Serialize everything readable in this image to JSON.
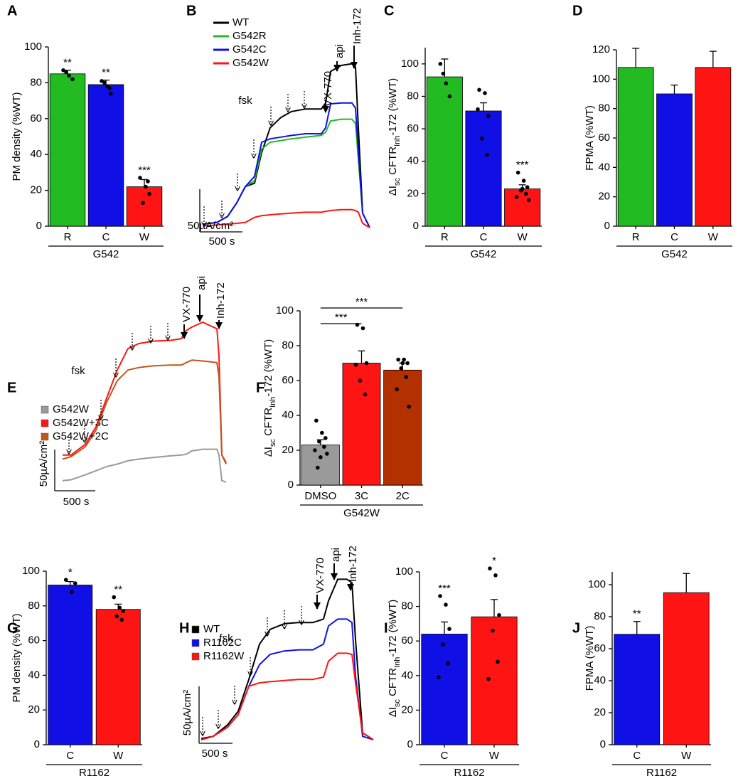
{
  "chart_data": [
    {
      "type": "bar",
      "panel": "A",
      "y_label": [
        "PM density (%WT)"
      ],
      "categories": [
        "R",
        "C",
        "W"
      ],
      "group": "G542",
      "values": [
        85,
        79,
        22
      ],
      "errors": [
        2,
        2.5,
        4
      ],
      "colors": [
        "#22bb22",
        "#1010e6",
        "#ff1414"
      ],
      "points": [
        [
          87,
          84,
          82,
          86
        ],
        [
          81,
          78,
          74,
          80,
          77
        ],
        [
          27,
          22,
          18,
          13,
          25
        ]
      ],
      "annotations": [
        "**",
        "**",
        "***"
      ],
      "ylim": [
        0,
        100
      ],
      "yticks": [
        0,
        20,
        40,
        60,
        80,
        100
      ]
    },
    {
      "type": "trace",
      "panel": "B",
      "x": [
        0,
        167,
        292,
        400,
        500,
        608,
        692,
        792,
        917,
        1042,
        1208,
        1392,
        1442,
        1500,
        1625,
        1750,
        1792,
        1825,
        1875,
        1958
      ],
      "series": [
        {
          "name": "WT",
          "color": "#000000",
          "values": [
            4,
            6,
            13,
            29,
            48,
            52,
            88,
            117,
            129,
            136,
            139,
            139,
            146,
            183,
            190,
            192,
            188,
            117,
            17,
            0
          ]
        },
        {
          "name": "G542R",
          "color": "#22bb22",
          "values": [
            4,
            6,
            13,
            29,
            48,
            55,
            92,
            100,
            102,
            104,
            106,
            108,
            112,
            125,
            127,
            127,
            122,
            80,
            17,
            0
          ]
        },
        {
          "name": "G542C",
          "color": "#1010e6",
          "values": [
            4,
            6,
            13,
            29,
            48,
            60,
            100,
            104,
            106,
            108,
            110,
            110,
            117,
            145,
            146,
            146,
            140,
            90,
            17,
            0
          ]
        },
        {
          "name": "G542W",
          "color": "#ff1414",
          "values": [
            2,
            3,
            4,
            5,
            6,
            12,
            14,
            15,
            16,
            17,
            18,
            18,
            19,
            20,
            21,
            21,
            20,
            18,
            5,
            0
          ]
        }
      ],
      "annotations": [
        "fsk",
        "VX-770",
        "api",
        "Inh-172"
      ],
      "scale_x": {
        "value": 500,
        "label": "500 s"
      },
      "scale_y": {
        "value": 50,
        "label": "50µA/cm²"
      },
      "legend_style": "line"
    },
    {
      "type": "bar",
      "panel": "C",
      "y_label": [
        "ΔI",
        "sc",
        " CFTR",
        "Inh",
        "-172 (%WT)"
      ],
      "categories": [
        "R",
        "C",
        "W"
      ],
      "group": "G542",
      "values": [
        92,
        71,
        23
      ],
      "errors": [
        11,
        5,
        2.5
      ],
      "colors": [
        "#22bb22",
        "#1010e6",
        "#ff1414"
      ],
      "points": [
        [
          100,
          88,
          80,
          94
        ],
        [
          84,
          82,
          68,
          54,
          44,
          72
        ],
        [
          33,
          28,
          24,
          22,
          20,
          18,
          16,
          23
        ]
      ],
      "annotations": [
        null,
        null,
        "***"
      ],
      "ylim": [
        0,
        110
      ],
      "yticks": [
        0,
        20,
        40,
        60,
        80,
        100
      ]
    },
    {
      "type": "bar",
      "panel": "D",
      "y_label": [
        "FPMA (%WT)"
      ],
      "categories": [
        "R",
        "C",
        "W"
      ],
      "group": "G542",
      "values": [
        108,
        90,
        108
      ],
      "errors": [
        13,
        6,
        11
      ],
      "colors": [
        "#22bb22",
        "#1010e6",
        "#ff1414"
      ],
      "ylim": [
        0,
        120
      ],
      "yticks": [
        0,
        20,
        40,
        60,
        80,
        100,
        120
      ]
    },
    {
      "type": "trace",
      "panel": "E",
      "x": [
        0,
        105,
        281,
        412,
        544,
        675,
        807,
        939,
        1114,
        1333,
        1465,
        1526,
        1596,
        1728,
        1816,
        1904,
        1930,
        1965,
        2018
      ],
      "series": [
        {
          "name": "G542W",
          "color": "#9a9a9a",
          "values": [
            2,
            3,
            9,
            14,
            19,
            22,
            26,
            28,
            30,
            32,
            33,
            34,
            38,
            40,
            40,
            40,
            33,
            2,
            0
          ]
        },
        {
          "name": "G542W+3C",
          "color": "#ff1414",
          "values": [
            33,
            33,
            46,
            67,
            102,
            136,
            162,
            168,
            171,
            172,
            174,
            184,
            188,
            194,
            190,
            186,
            153,
            33,
            24
          ]
        },
        {
          "name": "G542W+2C",
          "color": "#c0561e",
          "values": [
            28,
            31,
            43,
            63,
            97,
            123,
            136,
            139,
            141,
            142,
            142,
            145,
            148,
            147,
            146,
            145,
            128,
            33,
            22
          ]
        }
      ],
      "annotations": [
        "fsk",
        "VX-770",
        "api",
        "Inh-172"
      ],
      "scale_x": {
        "value": 500,
        "label": "500 s"
      },
      "scale_y": {
        "value": 50,
        "label": "50µA/cm²"
      },
      "legend_style": "square"
    },
    {
      "type": "bar",
      "panel": "F",
      "y_label": [
        "ΔI",
        "sc",
        " CFTR",
        "Inh",
        "-172 (%WT)"
      ],
      "categories": [
        "DMSO",
        "3C",
        "2C"
      ],
      "group": "G542W",
      "values": [
        23,
        70,
        66
      ],
      "errors": [
        3,
        7,
        4
      ],
      "colors": [
        "#9a9a9a",
        "#ff1414",
        "#b33000"
      ],
      "points": [
        [
          37,
          30,
          27,
          25,
          22,
          20,
          18,
          16,
          10
        ],
        [
          92,
          90,
          70,
          60,
          52,
          69
        ],
        [
          72,
          72,
          70,
          67,
          62,
          55,
          45,
          70
        ]
      ],
      "brackets": [
        {
          "from": 0,
          "to": 1,
          "label": "***"
        },
        {
          "from": 0,
          "to": 2,
          "label": "***"
        }
      ],
      "ylim": [
        0,
        100
      ],
      "yticks": [
        0,
        20,
        40,
        60,
        80,
        100
      ]
    },
    {
      "type": "bar",
      "panel": "G",
      "y_label": [
        "PM density (%WT)"
      ],
      "categories": [
        "C",
        "W"
      ],
      "group": "R1162",
      "values": [
        92,
        78
      ],
      "errors": [
        2,
        3
      ],
      "colors": [
        "#1010e6",
        "#ff1414"
      ],
      "points": [
        [
          95,
          88,
          93
        ],
        [
          85,
          79,
          77,
          74,
          72
        ]
      ],
      "annotations": [
        "*",
        "**"
      ],
      "ylim": [
        0,
        100
      ],
      "yticks": [
        0,
        20,
        40,
        60,
        80,
        100
      ]
    },
    {
      "type": "trace",
      "panel": "H",
      "x": [
        0,
        181,
        394,
        553,
        713,
        872,
        1032,
        1245,
        1457,
        1670,
        1830,
        1904,
        2043,
        2181,
        2255,
        2309,
        2415,
        2574
      ],
      "series": [
        {
          "name": "WT",
          "color": "#000000",
          "values": [
            1,
            3,
            13,
            25,
            53,
            84,
            97,
            102,
            103,
            103,
            106,
            122,
            141,
            141,
            138,
            88,
            6,
            0
          ]
        },
        {
          "name": "R1162C",
          "color": "#1010e6",
          "values": [
            0,
            3,
            11,
            22,
            47,
            66,
            75,
            78,
            79,
            79,
            84,
            100,
            106,
            106,
            103,
            56,
            3,
            0
          ]
        },
        {
          "name": "R1162W",
          "color": "#ff1414",
          "values": [
            0,
            3,
            11,
            22,
            47,
            50,
            51,
            52,
            53,
            53,
            55,
            69,
            76,
            76,
            75,
            50,
            6,
            0
          ]
        }
      ],
      "annotations": [
        "fsk",
        "VX-770",
        "api",
        "Inh-172"
      ],
      "scale_x": {
        "value": 500,
        "label": "500 s"
      },
      "scale_y": {
        "value": 50,
        "label": "50µA/cm²"
      },
      "legend_style": "square"
    },
    {
      "type": "bar",
      "panel": "I",
      "y_label": [
        "ΔI",
        "sc",
        " CFTR",
        "Inh",
        "-172 (%WT)"
      ],
      "categories": [
        "C",
        "W"
      ],
      "group": "R1162",
      "values": [
        64,
        74
      ],
      "errors": [
        7,
        10
      ],
      "colors": [
        "#1010e6",
        "#ff1414"
      ],
      "points": [
        [
          86,
          81,
          67,
          58,
          47,
          39
        ],
        [
          102,
          98,
          75,
          66,
          48,
          38
        ]
      ],
      "annotations": [
        "***",
        "*"
      ],
      "ylim": [
        0,
        100
      ],
      "yticks": [
        0,
        20,
        40,
        60,
        80,
        100
      ]
    },
    {
      "type": "bar",
      "panel": "J",
      "y_label": [
        "FPMA (%WT)"
      ],
      "categories": [
        "C",
        "W"
      ],
      "group": "R1162",
      "values": [
        69,
        95
      ],
      "errors": [
        8,
        12
      ],
      "colors": [
        "#1010e6",
        "#ff1414"
      ],
      "annotations": [
        "**",
        null
      ],
      "ylim": [
        0,
        108
      ],
      "yticks": [
        0,
        20,
        40,
        60,
        80,
        100
      ]
    }
  ]
}
